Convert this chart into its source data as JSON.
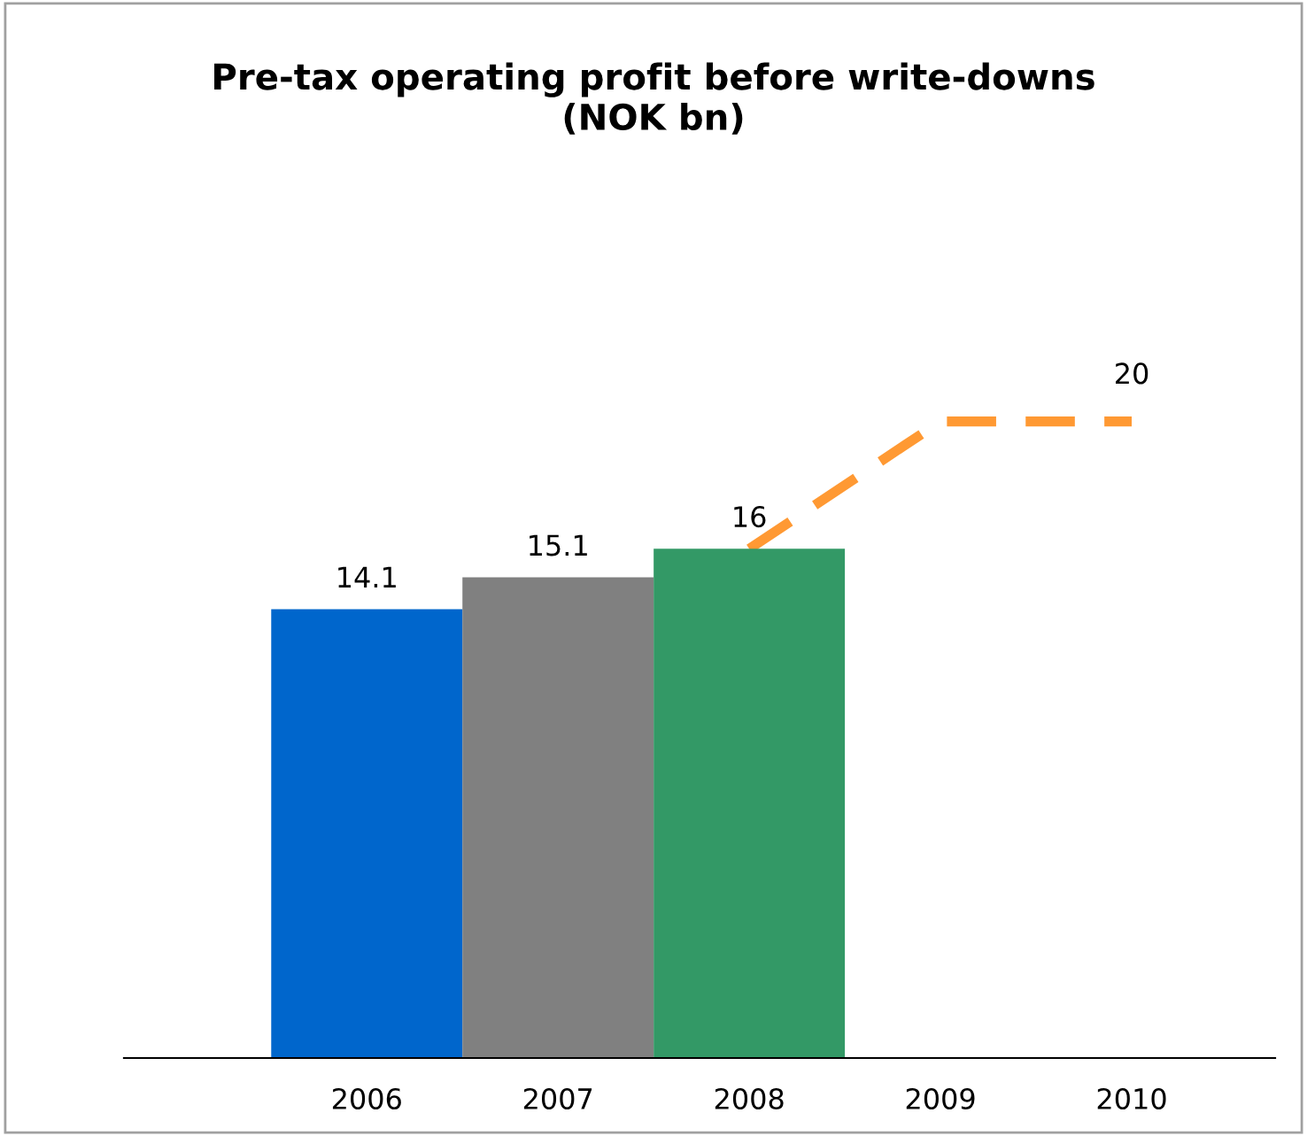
{
  "chart_data": {
    "type": "bar",
    "title": "Pre-tax operating profit before write-downs\n(NOK bn)",
    "categories": [
      "2006",
      "2007",
      "2008",
      "2009",
      "2010"
    ],
    "series": [
      {
        "colors": [
          "#0066cc",
          "#808080",
          "#339966",
          null,
          null
        ],
        "values": [
          14.1,
          15.1,
          16,
          null,
          null
        ],
        "value_labels": [
          "14.1",
          "15.1",
          "16",
          null,
          null
        ]
      },
      {
        "type": "line",
        "color": "#ff9933",
        "line_style": "dashed",
        "values": [
          null,
          null,
          16,
          20,
          20
        ],
        "value_labels": [
          null,
          null,
          null,
          null,
          "20"
        ]
      }
    ],
    "tick_labels": "x",
    "grid": false,
    "legend": false
  }
}
